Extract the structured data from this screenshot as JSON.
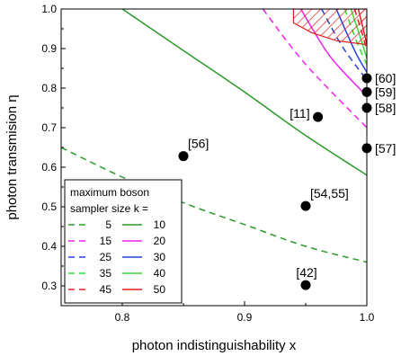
{
  "chart_data": {
    "type": "line",
    "xlabel": "photon indistinguishability x",
    "ylabel": "photon transmision η",
    "xlim": [
      0.75,
      1.0
    ],
    "ylim": [
      0.25,
      1.0
    ],
    "xticks": [
      0.8,
      0.9,
      1.0
    ],
    "xtick_labels": [
      "0.8",
      "0.9",
      "1.0"
    ],
    "yticks": [
      0.3,
      0.4,
      0.5,
      0.6,
      0.7,
      0.8,
      0.9,
      1.0
    ],
    "ytick_labels": [
      "0.3",
      "0.4",
      "0.5",
      "0.6",
      "0.7",
      "0.8",
      "0.9",
      "1.0"
    ],
    "legend": {
      "title_lines": [
        "maximum boson",
        "sampler size k ="
      ],
      "placement": "bottom-left"
    },
    "series": [
      {
        "name": "5",
        "color": "#2a9a2a",
        "dash": "dashed",
        "x": [
          0.75,
          0.8,
          0.85,
          0.9,
          0.95,
          1.0
        ],
        "y": [
          0.65,
          0.575,
          0.51,
          0.455,
          0.4,
          0.36
        ]
      },
      {
        "name": "10",
        "color": "#2a9a2a",
        "dash": "solid",
        "x": [
          0.8,
          0.85,
          0.9,
          0.95,
          1.0
        ],
        "y": [
          1.0,
          0.895,
          0.79,
          0.68,
          0.58
        ]
      },
      {
        "name": "15",
        "color": "#ee22ee",
        "dash": "dashed",
        "x": [
          0.915,
          0.95,
          1.0
        ],
        "y": [
          1.0,
          0.86,
          0.7
        ]
      },
      {
        "name": "20",
        "color": "#ee22ee",
        "dash": "solid",
        "x": [
          0.946,
          0.97,
          1.0
        ],
        "y": [
          1.0,
          0.88,
          0.78
        ]
      },
      {
        "name": "25",
        "color": "#2244dd",
        "dash": "dashed",
        "x": [
          0.963,
          0.98,
          1.0
        ],
        "y": [
          1.0,
          0.905,
          0.82
        ]
      },
      {
        "name": "30",
        "color": "#2244dd",
        "dash": "solid",
        "x": [
          0.975,
          0.99,
          1.0
        ],
        "y": [
          1.0,
          0.895,
          0.84
        ]
      },
      {
        "name": "35",
        "color": "#33dd33",
        "dash": "dashed",
        "x": [
          0.982,
          0.992,
          1.0
        ],
        "y": [
          1.0,
          0.915,
          0.86
        ]
      },
      {
        "name": "40",
        "color": "#33dd33",
        "dash": "solid",
        "x": [
          0.987,
          0.995,
          1.0
        ],
        "y": [
          1.0,
          0.925,
          0.875
        ]
      },
      {
        "name": "45",
        "color": "#dd2222",
        "dash": "dashed",
        "x": [
          0.99,
          0.996,
          1.0
        ],
        "y": [
          1.0,
          0.94,
          0.895
        ]
      },
      {
        "name": "50",
        "color": "#dd2222",
        "dash": "solid",
        "x": [
          0.993,
          0.997,
          1.0
        ],
        "y": [
          1.0,
          0.95,
          0.91
        ]
      }
    ],
    "hatched_region": {
      "color": "#dd2222",
      "points": [
        [
          0.94,
          1.0
        ],
        [
          1.0,
          1.0
        ],
        [
          1.0,
          0.91
        ],
        [
          0.997,
          0.95
        ],
        [
          0.993,
          1.0
        ]
      ],
      "outline": [
        [
          0.94,
          1.0
        ],
        [
          0.94,
          0.965
        ],
        [
          0.955,
          0.94
        ],
        [
          0.975,
          0.92
        ],
        [
          1.0,
          0.91
        ],
        [
          1.0,
          1.0
        ]
      ]
    },
    "points": [
      {
        "label": "[60]",
        "x": 1.0,
        "y": 0.825,
        "label_pos": "right"
      },
      {
        "label": "[59]",
        "x": 1.0,
        "y": 0.79,
        "label_pos": "right"
      },
      {
        "label": "[58]",
        "x": 1.0,
        "y": 0.75,
        "label_pos": "right"
      },
      {
        "label": "[57]",
        "x": 1.0,
        "y": 0.648,
        "label_pos": "right"
      },
      {
        "label": "[11]",
        "x": 0.96,
        "y": 0.727,
        "label_pos": "left"
      },
      {
        "label": "[56]",
        "x": 0.85,
        "y": 0.628,
        "label_pos": "above-right"
      },
      {
        "label": "[54,55]",
        "x": 0.95,
        "y": 0.502,
        "label_pos": "above-right"
      },
      {
        "label": "[42]",
        "x": 0.95,
        "y": 0.302,
        "label_pos": "above"
      }
    ]
  }
}
